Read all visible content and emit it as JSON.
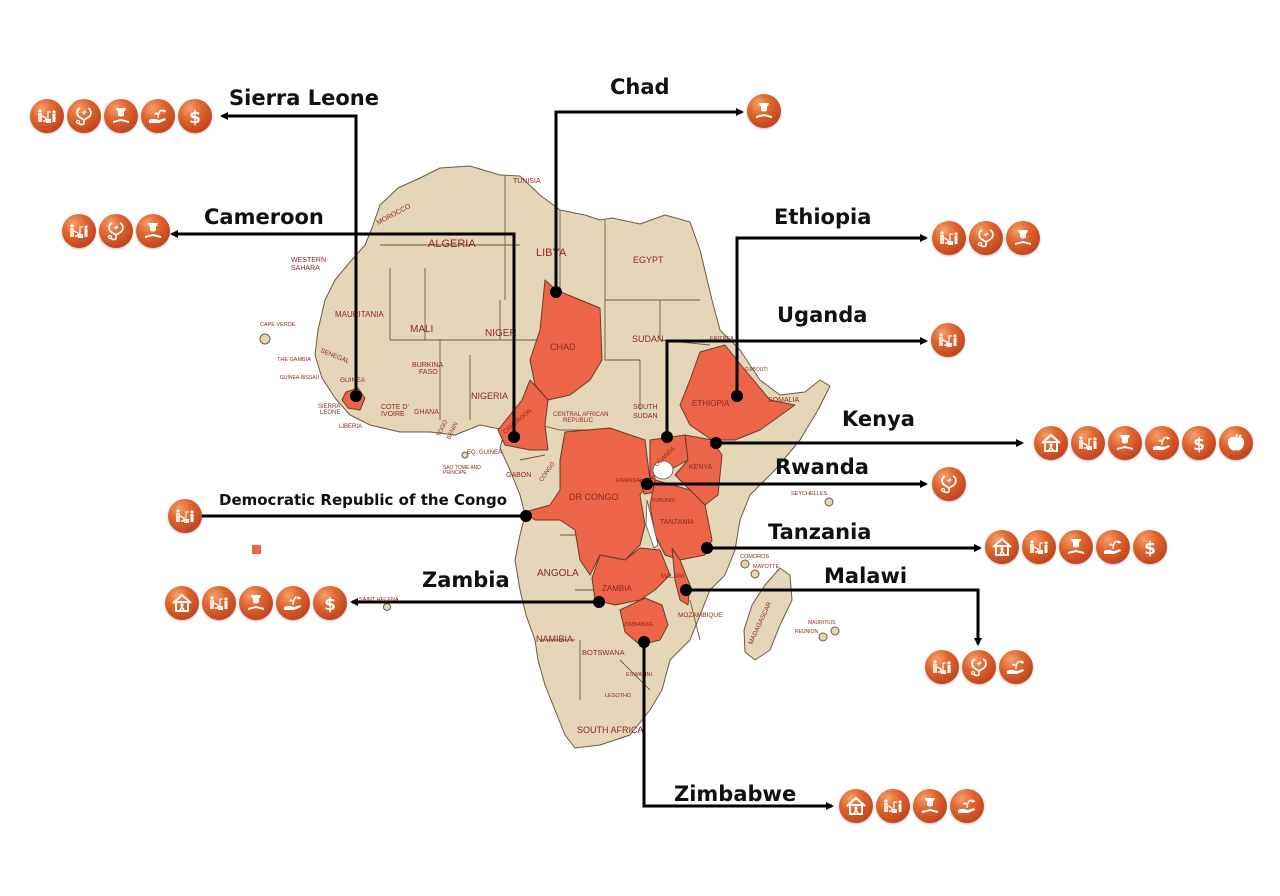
{
  "map": {
    "colors": {
      "land": "#e6d6b8",
      "highlight": "#ec6548",
      "label": "#8a2a1e",
      "icon": "#d4552a",
      "leader": "#000000"
    },
    "country_labels": {
      "tunisia": "TUNISIA",
      "morocco": "MOROCCO",
      "algeria": "ALGERIA",
      "libya": "LIBYA",
      "egypt": "EGYPT",
      "western_sahara": "WESTERN SAHARA",
      "mauritania": "MAURITANIA",
      "mali": "MALI",
      "niger": "NIGER",
      "chad": "CHAD",
      "sudan": "SUDAN",
      "eritrea": "ERITREA",
      "djibouti": "DJIBOUTI",
      "cape_verde": "CAPE VERDE",
      "senegal": "SENEGAL",
      "the_gambia": "THE GAMBIA",
      "guinea_bissau": "GUINEA-BISSAU",
      "guinea": "GUINEA",
      "sierra_leone": "SIERRA LEONE",
      "liberia": "LIBERIA",
      "burkina_faso": "BURKINA FASO",
      "cote_divoire": "COTE D' IVOIRE",
      "ghana": "GHANA",
      "togo": "TOGO",
      "benin": "BENIN",
      "nigeria": "NIGERIA",
      "cameroon": "CAMEROON",
      "central_african_republic": "CENTRAL AFRICAN REPUBLIC",
      "south_sudan": "SOUTH SUDAN",
      "ethiopia": "ETHIOPIA",
      "somalia": "SOMALIA",
      "eq_guinea": "EQ. GUINEA",
      "sao_tome": "SAO TOME AND PRINCIPE",
      "gabon": "GABON",
      "congo": "CONGO",
      "dr_congo": "DR CONGO",
      "uganda": "UGANDA",
      "kenya": "KENYA",
      "rwanda": "RWANDA",
      "burundi": "BURUNDI",
      "tanzania": "TANZANIA",
      "seychelles": "SEYCHELLES",
      "comoros": "COMOROS",
      "mayotte": "MAYOTTE",
      "angola": "ANGOLA",
      "zambia": "ZAMBIA",
      "malawi": "MALAWI",
      "mozambique": "MOZAMBIQUE",
      "madagascar": "MADAGASCAR",
      "mauritius": "MAURITIUS",
      "reunion": "REUNION",
      "saint_helena": "SAINT HELENA",
      "namibia": "NAMIBIA",
      "botswana": "BOTSWANA",
      "zimbabwe": "ZIMBABWE",
      "eswatini": "ESWATINI",
      "lesotho": "LESOTHO",
      "south_africa": "SOUTH AFRICA"
    }
  },
  "icon_types": {
    "home": "child-home-icon",
    "water": "water-well-icon",
    "health": "stethoscope-heart-icon",
    "education": "graduate-book-icon",
    "agriculture": "hand-plant-icon",
    "finance": "dollar-icon",
    "nutrition": "apple-icon"
  },
  "callouts": [
    {
      "country": "Sierra Leone",
      "icons": [
        "water",
        "health",
        "education",
        "agriculture",
        "finance"
      ]
    },
    {
      "country": "Cameroon",
      "icons": [
        "water",
        "health",
        "education"
      ]
    },
    {
      "country": "Chad",
      "icons": [
        "education"
      ]
    },
    {
      "country": "Ethiopia",
      "icons": [
        "water",
        "health",
        "education"
      ]
    },
    {
      "country": "Uganda",
      "icons": [
        "water"
      ]
    },
    {
      "country": "Kenya",
      "icons": [
        "home",
        "water",
        "education",
        "agriculture",
        "finance",
        "nutrition"
      ]
    },
    {
      "country": "Rwanda",
      "icons": [
        "health"
      ]
    },
    {
      "country": "Democratic Republic of the Congo",
      "icons": [
        "water"
      ]
    },
    {
      "country": "Tanzania",
      "icons": [
        "home",
        "water",
        "education",
        "agriculture",
        "finance"
      ]
    },
    {
      "country": "Zambia",
      "icons": [
        "home",
        "water",
        "education",
        "agriculture",
        "finance"
      ]
    },
    {
      "country": "Malawi",
      "icons": [
        "water",
        "health",
        "agriculture"
      ]
    },
    {
      "country": "Zimbabwe",
      "icons": [
        "home",
        "water",
        "education",
        "agriculture"
      ]
    }
  ]
}
